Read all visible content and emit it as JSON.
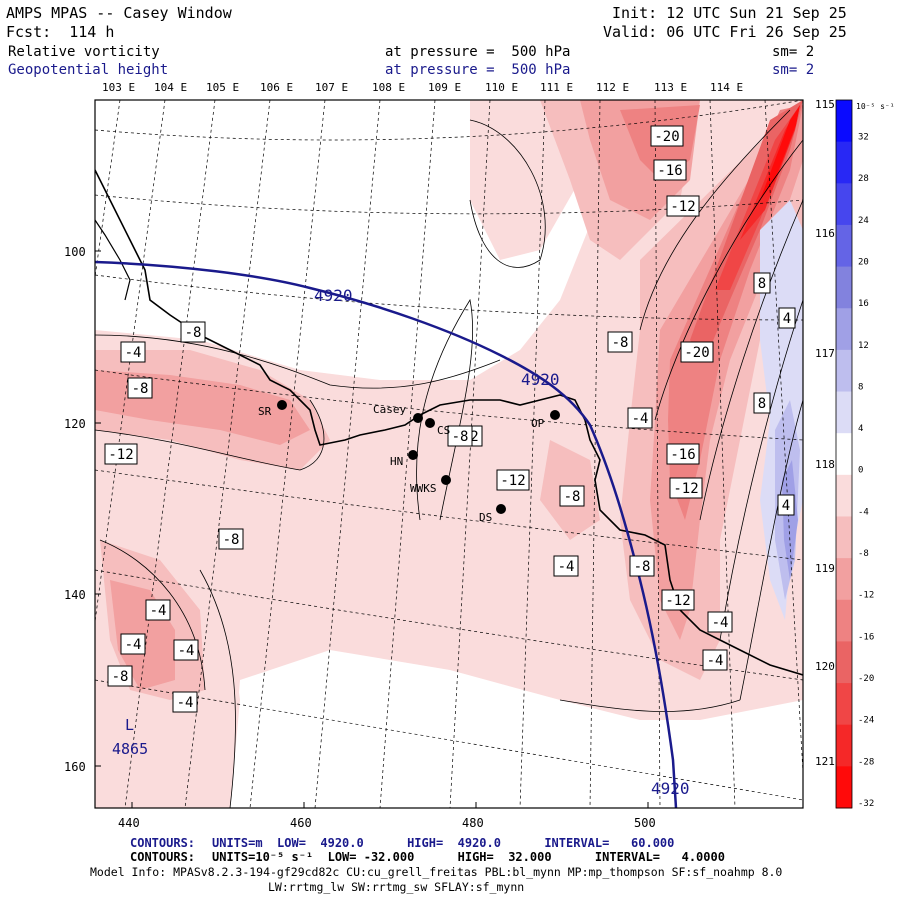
{
  "header": {
    "title": "AMPS MPAS -- Casey Window",
    "init": "Init: 12 UTC Sun 21 Sep 25",
    "forecast": "Fcst:  114 h",
    "valid": "Valid: 06 UTC Fri 26 Sep 25",
    "field1_name": "Relative vorticity",
    "field1_level": "at pressure =  500 hPa",
    "field1_sm": "sm= 2",
    "field2_name": "Geopotential height",
    "field2_level": "at pressure =  500 hPa",
    "field2_sm": "sm= 2"
  },
  "top_longitudes": [
    "103 E",
    "104 E",
    "105 E",
    "106 E",
    "107 E",
    "108 E",
    "109 E",
    "110 E",
    "111 E",
    "112 E",
    "113 E",
    "114 E"
  ],
  "right_longitudes": [
    "115 E",
    "116 E",
    "117 E",
    "118 E",
    "119 E",
    "120 E",
    "121 E"
  ],
  "x_ticks": [
    "440",
    "460",
    "480",
    "500"
  ],
  "y_ticks": [
    "100",
    "120",
    "140",
    "160"
  ],
  "colorbar": {
    "unit": "10⁻⁵ s⁻¹",
    "labels": [
      "32",
      "28",
      "24",
      "20",
      "16",
      "12",
      "8",
      "4",
      "0",
      "-4",
      "-8",
      "-12",
      "-16",
      "-20",
      "-24",
      "-28",
      "-32"
    ],
    "colors": [
      "#0a0aff",
      "#2828f5",
      "#4646ee",
      "#6464e6",
      "#8282de",
      "#a0a0e6",
      "#bebeee",
      "#dcdcf6",
      "#ffffff",
      "#fadcdc",
      "#f6bebe",
      "#f2a0a0",
      "#ee8282",
      "#ea6464",
      "#f04646",
      "#f52828",
      "#ff0a0a"
    ]
  },
  "stations": [
    {
      "name": "SR"
    },
    {
      "name": "Casey"
    },
    {
      "name": "CS"
    },
    {
      "name": "HN"
    },
    {
      "name": "WWKS"
    },
    {
      "name": "DS"
    },
    {
      "name": "OP"
    }
  ],
  "height_contour_labels": [
    "4920",
    "4920",
    "4920"
  ],
  "low_label": {
    "symbol": "L",
    "value": "4865"
  },
  "vorticity_labels": [
    "-20",
    "-16",
    "-12",
    "-8",
    "-20",
    "-4",
    "-16",
    "-12",
    "-8",
    "-12",
    "-4",
    "-8",
    "-4",
    "-8",
    "-12",
    "-8",
    "-4",
    "-4",
    "-4",
    "-4",
    "-8",
    "-12",
    "-12",
    "-8",
    "-8",
    "-4",
    "-4",
    "8",
    "4",
    "8",
    "4"
  ],
  "footer": {
    "line1_label": "CONTOURS:",
    "line1": "UNITS=m  LOW=  4920.0      HIGH=  4920.0      INTERVAL=   60.000",
    "line2_label": "CONTOURS:",
    "line2": "UNITS=10⁻⁵ s⁻¹  LOW= -32.000      HIGH=  32.000      INTERVAL=   4.0000",
    "model_info": "Model Info: MPASv8.2.3-194-gf29cd82c CU:cu_grell_freitas PBL:bl_mynn MP:mp_thompson SF:sf_noahmp 8.0",
    "model_info2": "LW:rrtmg_lw SW:rrtmg_sw SFLAY:sf_mynn"
  }
}
